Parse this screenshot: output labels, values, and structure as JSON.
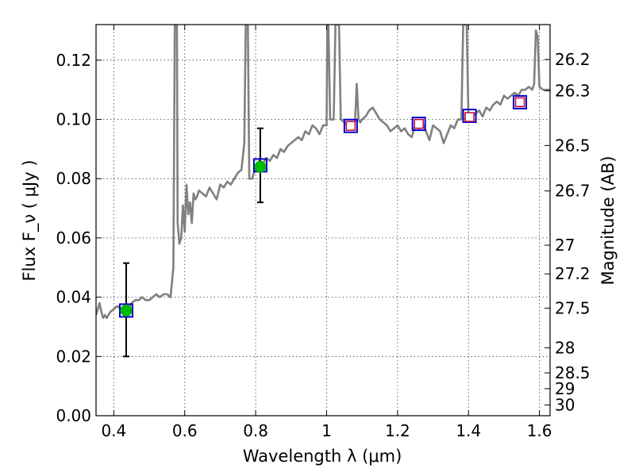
{
  "chart_data": {
    "type": "line",
    "xlabel": "Wavelength λ (μm)",
    "ylabel": "Flux F_ν ( μJy )",
    "ylabel_right": "Magnitude (AB)",
    "xlim": [
      0.35,
      1.63
    ],
    "ylim": [
      0.0,
      0.132
    ],
    "grid": true,
    "x_ticks": [
      0.4,
      0.6,
      0.8,
      1.0,
      1.2,
      1.4,
      1.6
    ],
    "x_tick_labels": [
      "0.4",
      "0.6",
      "0.8",
      "1",
      "1.2",
      "1.4",
      "1.6"
    ],
    "y_ticks": [
      0.0,
      0.02,
      0.04,
      0.06,
      0.08,
      0.1,
      0.12
    ],
    "y_tick_labels": [
      "0.00",
      "0.02",
      "0.04",
      "0.06",
      "0.08",
      "0.10",
      "0.12"
    ],
    "mag_ticks": [
      26.2,
      26.3,
      26.5,
      26.7,
      27,
      27.2,
      27.5,
      28,
      28.5,
      29,
      30
    ],
    "mag_tick_labels": [
      "26.2",
      "26.3",
      "26.5",
      "26.7",
      "27",
      "27.2",
      "27.5",
      "28",
      "28.5",
      "29",
      "30"
    ],
    "colors": {
      "spectrum": "#808080",
      "observed_marker": "#00bb00",
      "model_box": "#0000cc",
      "predicted_box": "#cc0033",
      "errorbar": "#000000"
    },
    "spectrum": {
      "x": [
        0.35,
        0.355,
        0.36,
        0.365,
        0.37,
        0.375,
        0.38,
        0.385,
        0.39,
        0.4,
        0.41,
        0.42,
        0.43,
        0.44,
        0.45,
        0.46,
        0.47,
        0.48,
        0.49,
        0.5,
        0.51,
        0.52,
        0.53,
        0.54,
        0.55,
        0.56,
        0.568,
        0.572,
        0.575,
        0.578,
        0.58,
        0.585,
        0.59,
        0.595,
        0.6,
        0.605,
        0.61,
        0.615,
        0.62,
        0.625,
        0.63,
        0.635,
        0.64,
        0.65,
        0.66,
        0.67,
        0.68,
        0.69,
        0.7,
        0.71,
        0.72,
        0.73,
        0.74,
        0.75,
        0.76,
        0.768,
        0.772,
        0.775,
        0.778,
        0.782,
        0.79,
        0.8,
        0.81,
        0.82,
        0.83,
        0.84,
        0.85,
        0.86,
        0.87,
        0.88,
        0.89,
        0.9,
        0.91,
        0.92,
        0.93,
        0.94,
        0.95,
        0.96,
        0.97,
        0.98,
        0.99,
        1.0,
        1.002,
        1.005,
        1.01,
        1.02,
        1.025,
        1.03,
        1.035,
        1.04,
        1.05,
        1.06,
        1.07,
        1.08,
        1.085,
        1.09,
        1.095,
        1.1,
        1.11,
        1.12,
        1.13,
        1.14,
        1.15,
        1.16,
        1.17,
        1.18,
        1.19,
        1.2,
        1.21,
        1.22,
        1.23,
        1.24,
        1.25,
        1.26,
        1.27,
        1.28,
        1.29,
        1.3,
        1.31,
        1.32,
        1.33,
        1.34,
        1.35,
        1.36,
        1.37,
        1.38,
        1.385,
        1.39,
        1.395,
        1.4,
        1.41,
        1.42,
        1.43,
        1.44,
        1.45,
        1.46,
        1.47,
        1.48,
        1.49,
        1.5,
        1.51,
        1.52,
        1.53,
        1.54,
        1.55,
        1.56,
        1.57,
        1.58,
        1.585,
        1.59,
        1.595,
        1.6,
        1.61,
        1.62,
        1.63
      ],
      "y": [
        0.034,
        0.036,
        0.038,
        0.035,
        0.033,
        0.034,
        0.033,
        0.034,
        0.035,
        0.036,
        0.037,
        0.036,
        0.036,
        0.035,
        0.038,
        0.039,
        0.039,
        0.04,
        0.039,
        0.039,
        0.04,
        0.041,
        0.04,
        0.041,
        0.041,
        0.04,
        0.05,
        0.132,
        0.132,
        0.132,
        0.065,
        0.058,
        0.06,
        0.071,
        0.062,
        0.078,
        0.068,
        0.072,
        0.065,
        0.075,
        0.073,
        0.074,
        0.076,
        0.075,
        0.074,
        0.077,
        0.075,
        0.073,
        0.078,
        0.077,
        0.079,
        0.078,
        0.08,
        0.082,
        0.083,
        0.092,
        0.132,
        0.132,
        0.132,
        0.08,
        0.08,
        0.084,
        0.086,
        0.085,
        0.087,
        0.086,
        0.088,
        0.087,
        0.09,
        0.089,
        0.091,
        0.092,
        0.093,
        0.094,
        0.093,
        0.096,
        0.095,
        0.098,
        0.097,
        0.095,
        0.098,
        0.098,
        0.132,
        0.132,
        0.1,
        0.1,
        0.132,
        0.132,
        0.132,
        0.1,
        0.099,
        0.098,
        0.097,
        0.099,
        0.112,
        0.1,
        0.099,
        0.1,
        0.101,
        0.103,
        0.104,
        0.102,
        0.1,
        0.099,
        0.098,
        0.096,
        0.097,
        0.098,
        0.096,
        0.097,
        0.095,
        0.094,
        0.098,
        0.097,
        0.099,
        0.096,
        0.093,
        0.098,
        0.097,
        0.096,
        0.092,
        0.095,
        0.098,
        0.097,
        0.1,
        0.1,
        0.132,
        0.132,
        0.132,
        0.1,
        0.101,
        0.102,
        0.103,
        0.101,
        0.104,
        0.103,
        0.105,
        0.106,
        0.105,
        0.108,
        0.107,
        0.108,
        0.109,
        0.108,
        0.11,
        0.11,
        0.111,
        0.11,
        0.112,
        0.13,
        0.128,
        0.111,
        0.11,
        0.11,
        0.11
      ]
    },
    "observed": [
      {
        "x": 0.435,
        "y": 0.0355,
        "yerr_low": 0.02,
        "yerr_high": 0.0515
      },
      {
        "x": 0.813,
        "y": 0.084,
        "yerr_low": 0.072,
        "yerr_high": 0.097
      }
    ],
    "model_boxes": [
      {
        "x": 0.435,
        "y": 0.0355
      },
      {
        "x": 0.813,
        "y": 0.0845
      },
      {
        "x": 1.068,
        "y": 0.0978
      },
      {
        "x": 1.26,
        "y": 0.0985
      },
      {
        "x": 1.403,
        "y": 0.1012
      },
      {
        "x": 1.545,
        "y": 0.1058
      }
    ],
    "predicted_boxes": [
      {
        "x": 1.068,
        "y": 0.0978
      },
      {
        "x": 1.26,
        "y": 0.0985
      },
      {
        "x": 1.403,
        "y": 0.1008
      },
      {
        "x": 1.545,
        "y": 0.1058
      }
    ]
  }
}
